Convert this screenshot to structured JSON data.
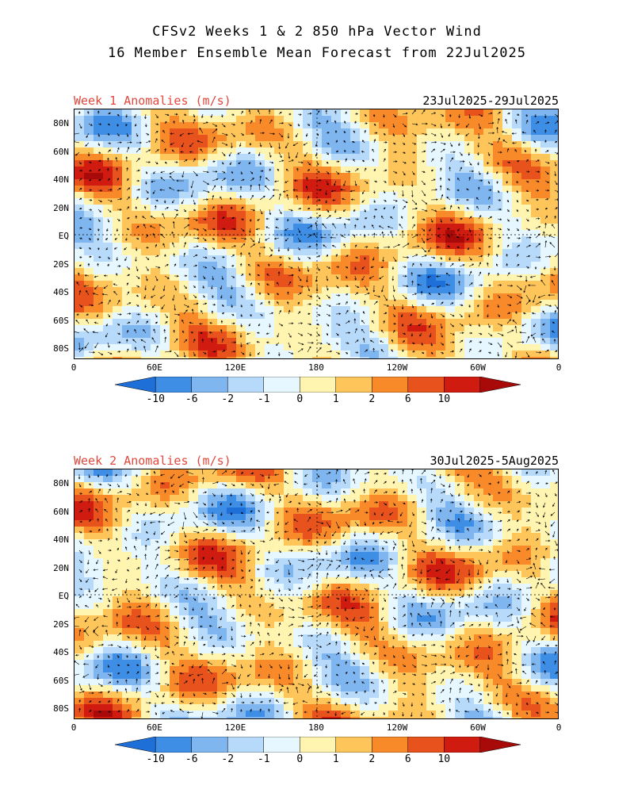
{
  "title": {
    "line1": "CFSv2 Weeks 1 & 2 850 hPa Vector Wind",
    "line2": "16 Member Ensemble Mean Forecast from 22Jul2025"
  },
  "panels": [
    {
      "label": "Week 1 Anomalies (m/s)",
      "dates": "23Jul2025-29Jul2025"
    },
    {
      "label": "Week 2 Anomalies (m/s)",
      "dates": "30Jul2025-5Aug2025"
    }
  ],
  "lat_labels": [
    "80N",
    "60N",
    "40N",
    "20N",
    "EQ",
    "20S",
    "40S",
    "60S",
    "80S"
  ],
  "lon_labels": [
    "0",
    "60E",
    "120E",
    "180",
    "120W",
    "60W",
    "0"
  ],
  "colorbar": {
    "labels": [
      "-10",
      "-6",
      "-2",
      "-1",
      "0",
      "1",
      "2",
      "6",
      "10"
    ],
    "colors": [
      "#1f6fd8",
      "#3f8ee6",
      "#7fb6f0",
      "#b8dafa",
      "#e6f7ff",
      "#fff4b0",
      "#fdc55a",
      "#f88a2a",
      "#e8521c",
      "#d01c10",
      "#a80a0a"
    ]
  }
}
